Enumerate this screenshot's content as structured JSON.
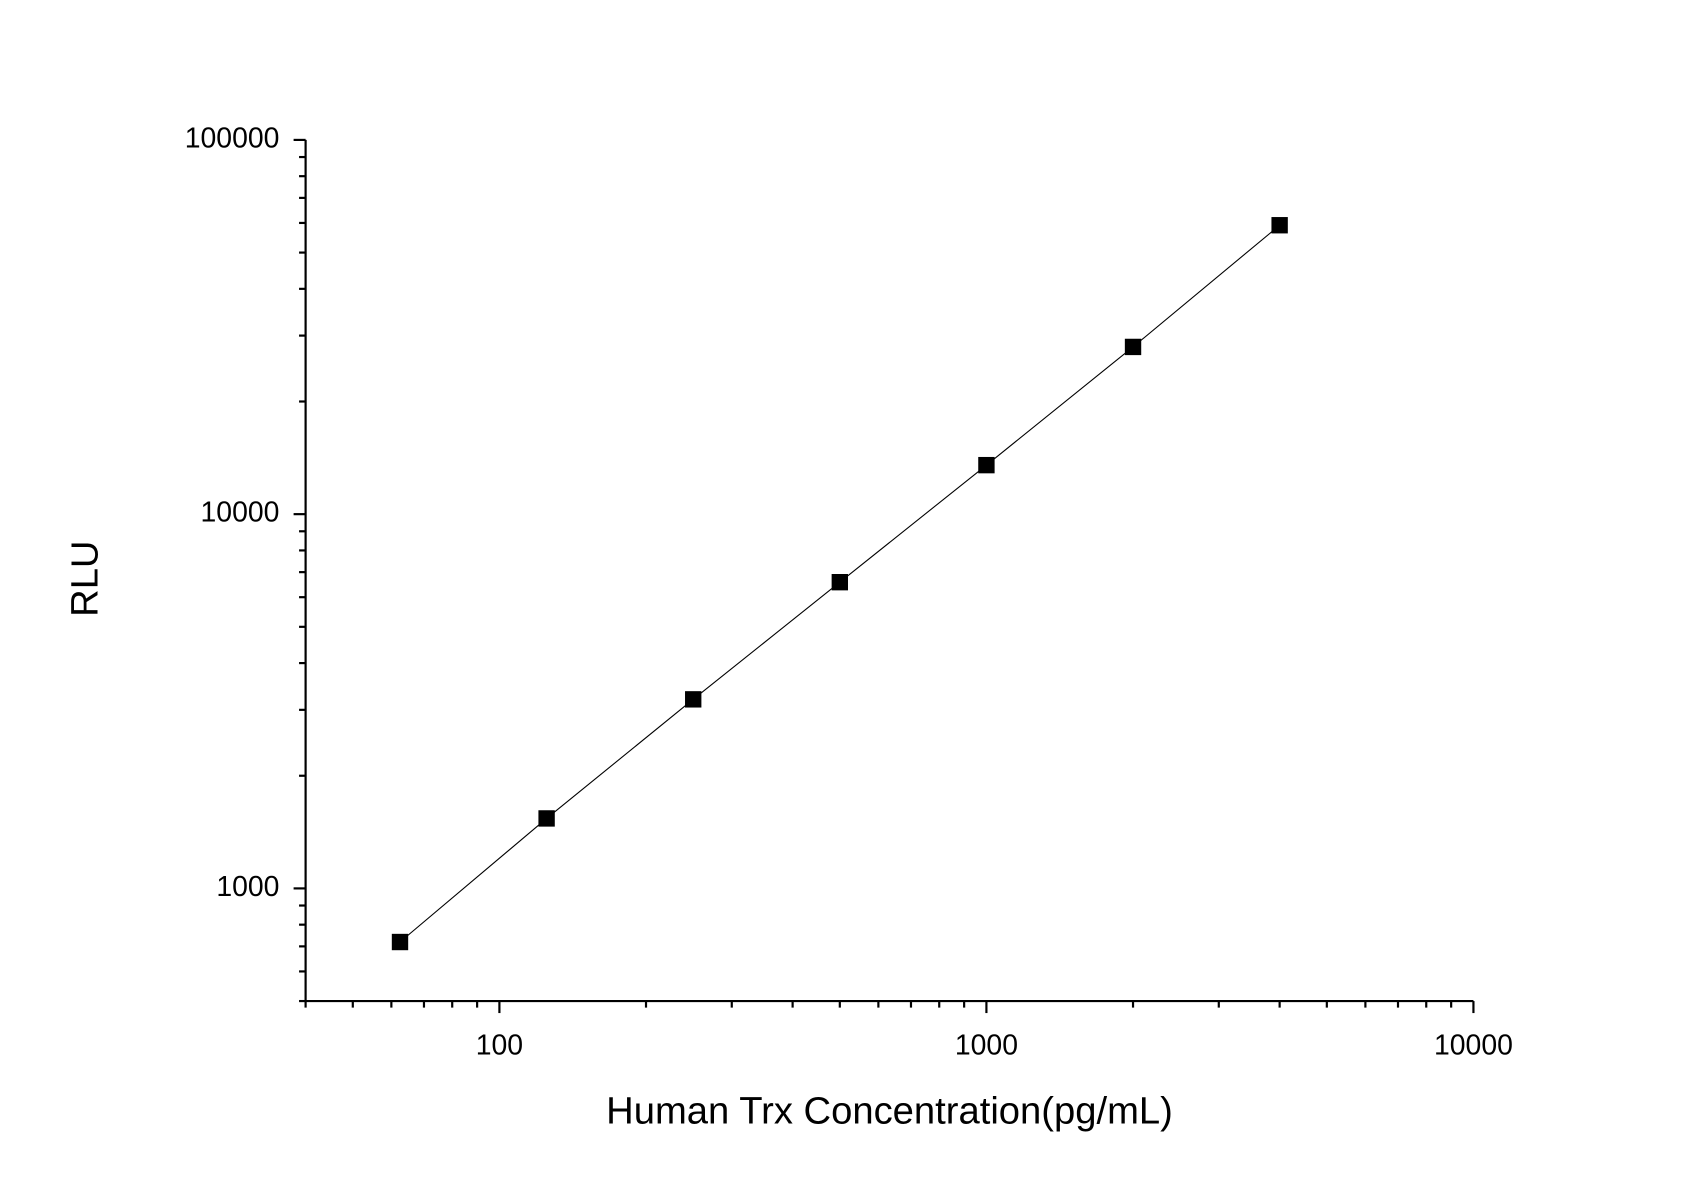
{
  "chart_data": {
    "type": "scatter",
    "xlabel": "Human Trx Concentration(pg/mL)",
    "ylabel": "RLU",
    "x": [
      62.5,
      125,
      250,
      500,
      1000,
      2000,
      4000
    ],
    "series": [
      {
        "color": "#000000",
        "values": [
          719,
          1538,
          3200,
          6580,
          13520,
          27980,
          59160
        ]
      }
    ],
    "xscale": "log",
    "yscale": "log",
    "xlim": [
      40,
      10000
    ],
    "ylim": [
      500,
      100000
    ],
    "xticks": [
      100,
      1000,
      10000
    ],
    "yticks": [
      1000,
      10000,
      100000
    ],
    "grid": false
  }
}
